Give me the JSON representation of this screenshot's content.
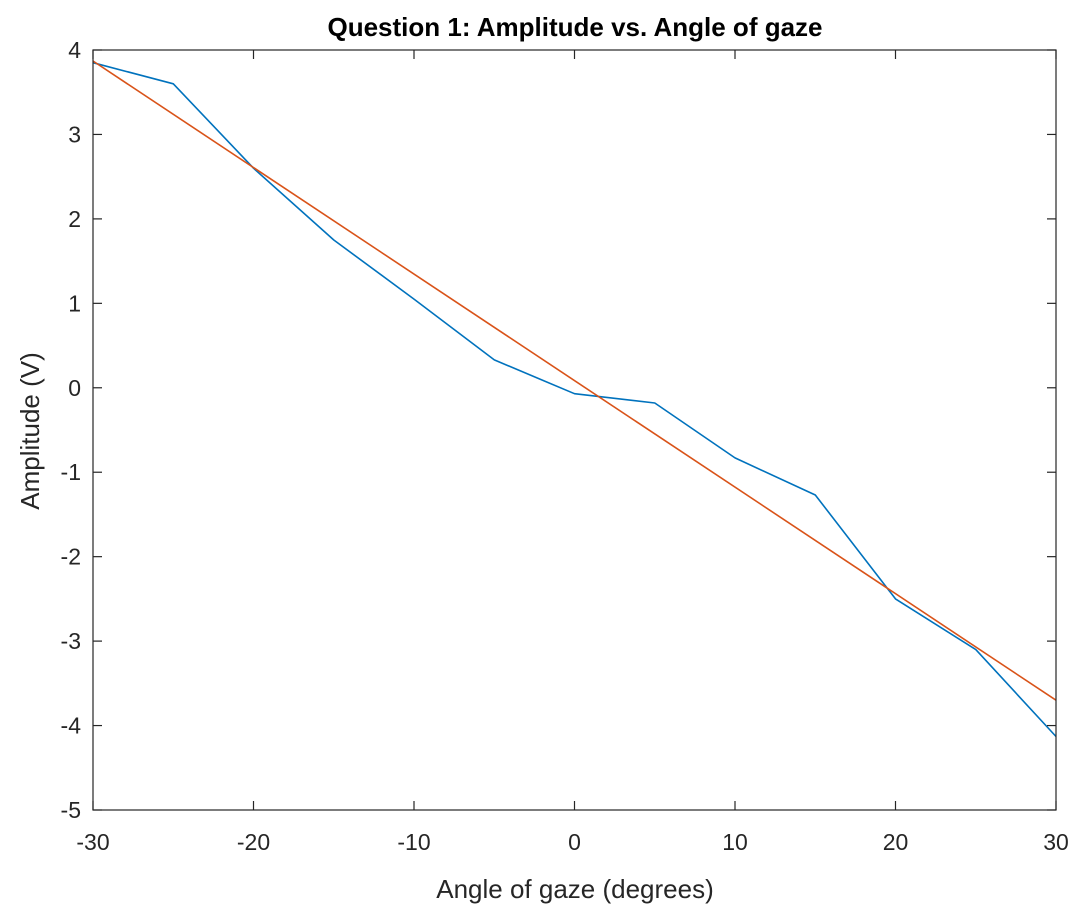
{
  "chart_data": {
    "type": "line",
    "title": "Question 1: Amplitude vs. Angle of gaze",
    "xlabel": "Angle of gaze (degrees)",
    "ylabel": "Amplitude (V)",
    "xlim": [
      -30,
      30
    ],
    "ylim": [
      -5,
      4
    ],
    "xticks": [
      -30,
      -20,
      -10,
      0,
      10,
      20,
      30
    ],
    "yticks": [
      4,
      3,
      2,
      1,
      0,
      -1,
      -2,
      -3,
      -4,
      -5
    ],
    "grid": false,
    "legend": "none",
    "series": [
      {
        "color": "#0072BD",
        "x": [
          -30,
          -25,
          -20,
          -15,
          -10,
          -5,
          0,
          5,
          10,
          15,
          20,
          25,
          30
        ],
        "y": [
          3.85,
          3.6,
          2.6,
          1.75,
          1.05,
          0.33,
          -0.07,
          -0.18,
          -0.83,
          -1.27,
          -2.5,
          -3.1,
          -4.13
        ]
      },
      {
        "color": "#D95319",
        "x": [
          -30,
          30
        ],
        "y": [
          3.87,
          -3.7
        ]
      }
    ]
  }
}
